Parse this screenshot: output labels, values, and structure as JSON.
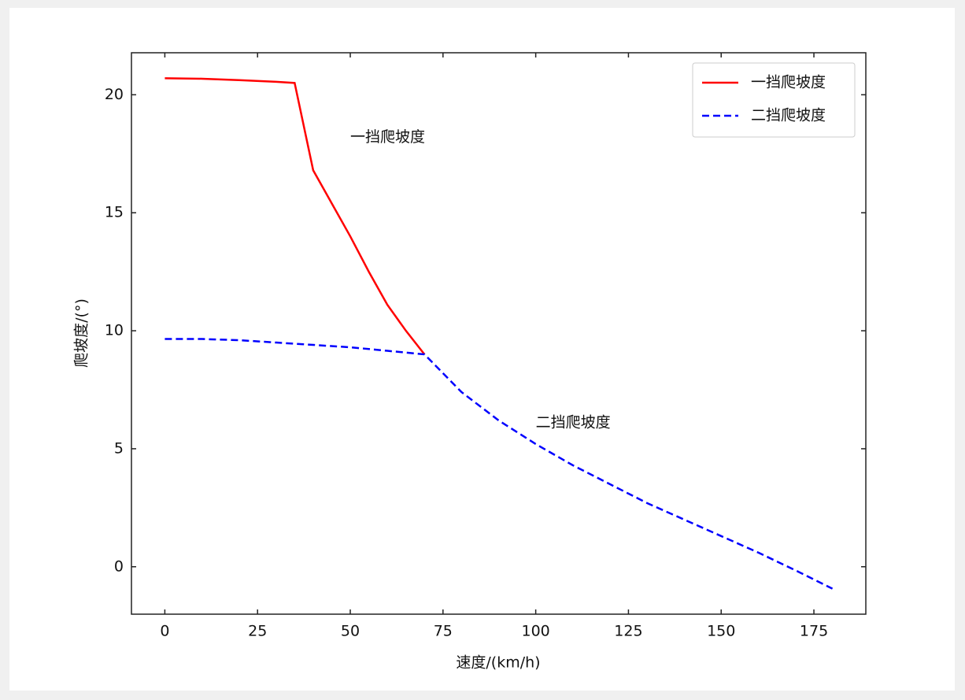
{
  "chart_data": {
    "type": "line",
    "x_label": "速度/(km/h)",
    "y_label": "爬坡度/(°)",
    "xlim": [
      -9,
      189
    ],
    "ylim": [
      -2.01,
      21.78
    ],
    "xticks": [
      0,
      25,
      50,
      75,
      100,
      125,
      150,
      175
    ],
    "yticks": [
      0,
      5,
      10,
      15,
      20
    ],
    "legend": "upper right",
    "series": [
      {
        "name": "一挡爬坡度",
        "color": "#ff0000",
        "style": "solid",
        "x": [
          0,
          10,
          20,
          30,
          35,
          40,
          45,
          50,
          55,
          60,
          65,
          70
        ],
        "values": [
          20.7,
          20.68,
          20.62,
          20.55,
          20.5,
          16.8,
          15.4,
          14.0,
          12.5,
          11.1,
          10.0,
          9.0
        ]
      },
      {
        "name": "二挡爬坡度",
        "color": "#0000ff",
        "style": "dashed",
        "x": [
          0,
          10,
          20,
          30,
          40,
          50,
          60,
          70,
          80,
          90,
          100,
          110,
          120,
          130,
          140,
          150,
          160,
          170,
          180
        ],
        "values": [
          9.65,
          9.65,
          9.6,
          9.5,
          9.4,
          9.3,
          9.15,
          9.0,
          7.4,
          6.2,
          5.2,
          4.3,
          3.5,
          2.7,
          2.0,
          1.3,
          0.6,
          -0.15,
          -0.93
        ]
      }
    ],
    "annotations": [
      {
        "text": "一挡爬坡度",
        "x": 50,
        "y": 18.2
      },
      {
        "text": "二挡爬坡度",
        "x": 100,
        "y": 6.1
      }
    ]
  }
}
